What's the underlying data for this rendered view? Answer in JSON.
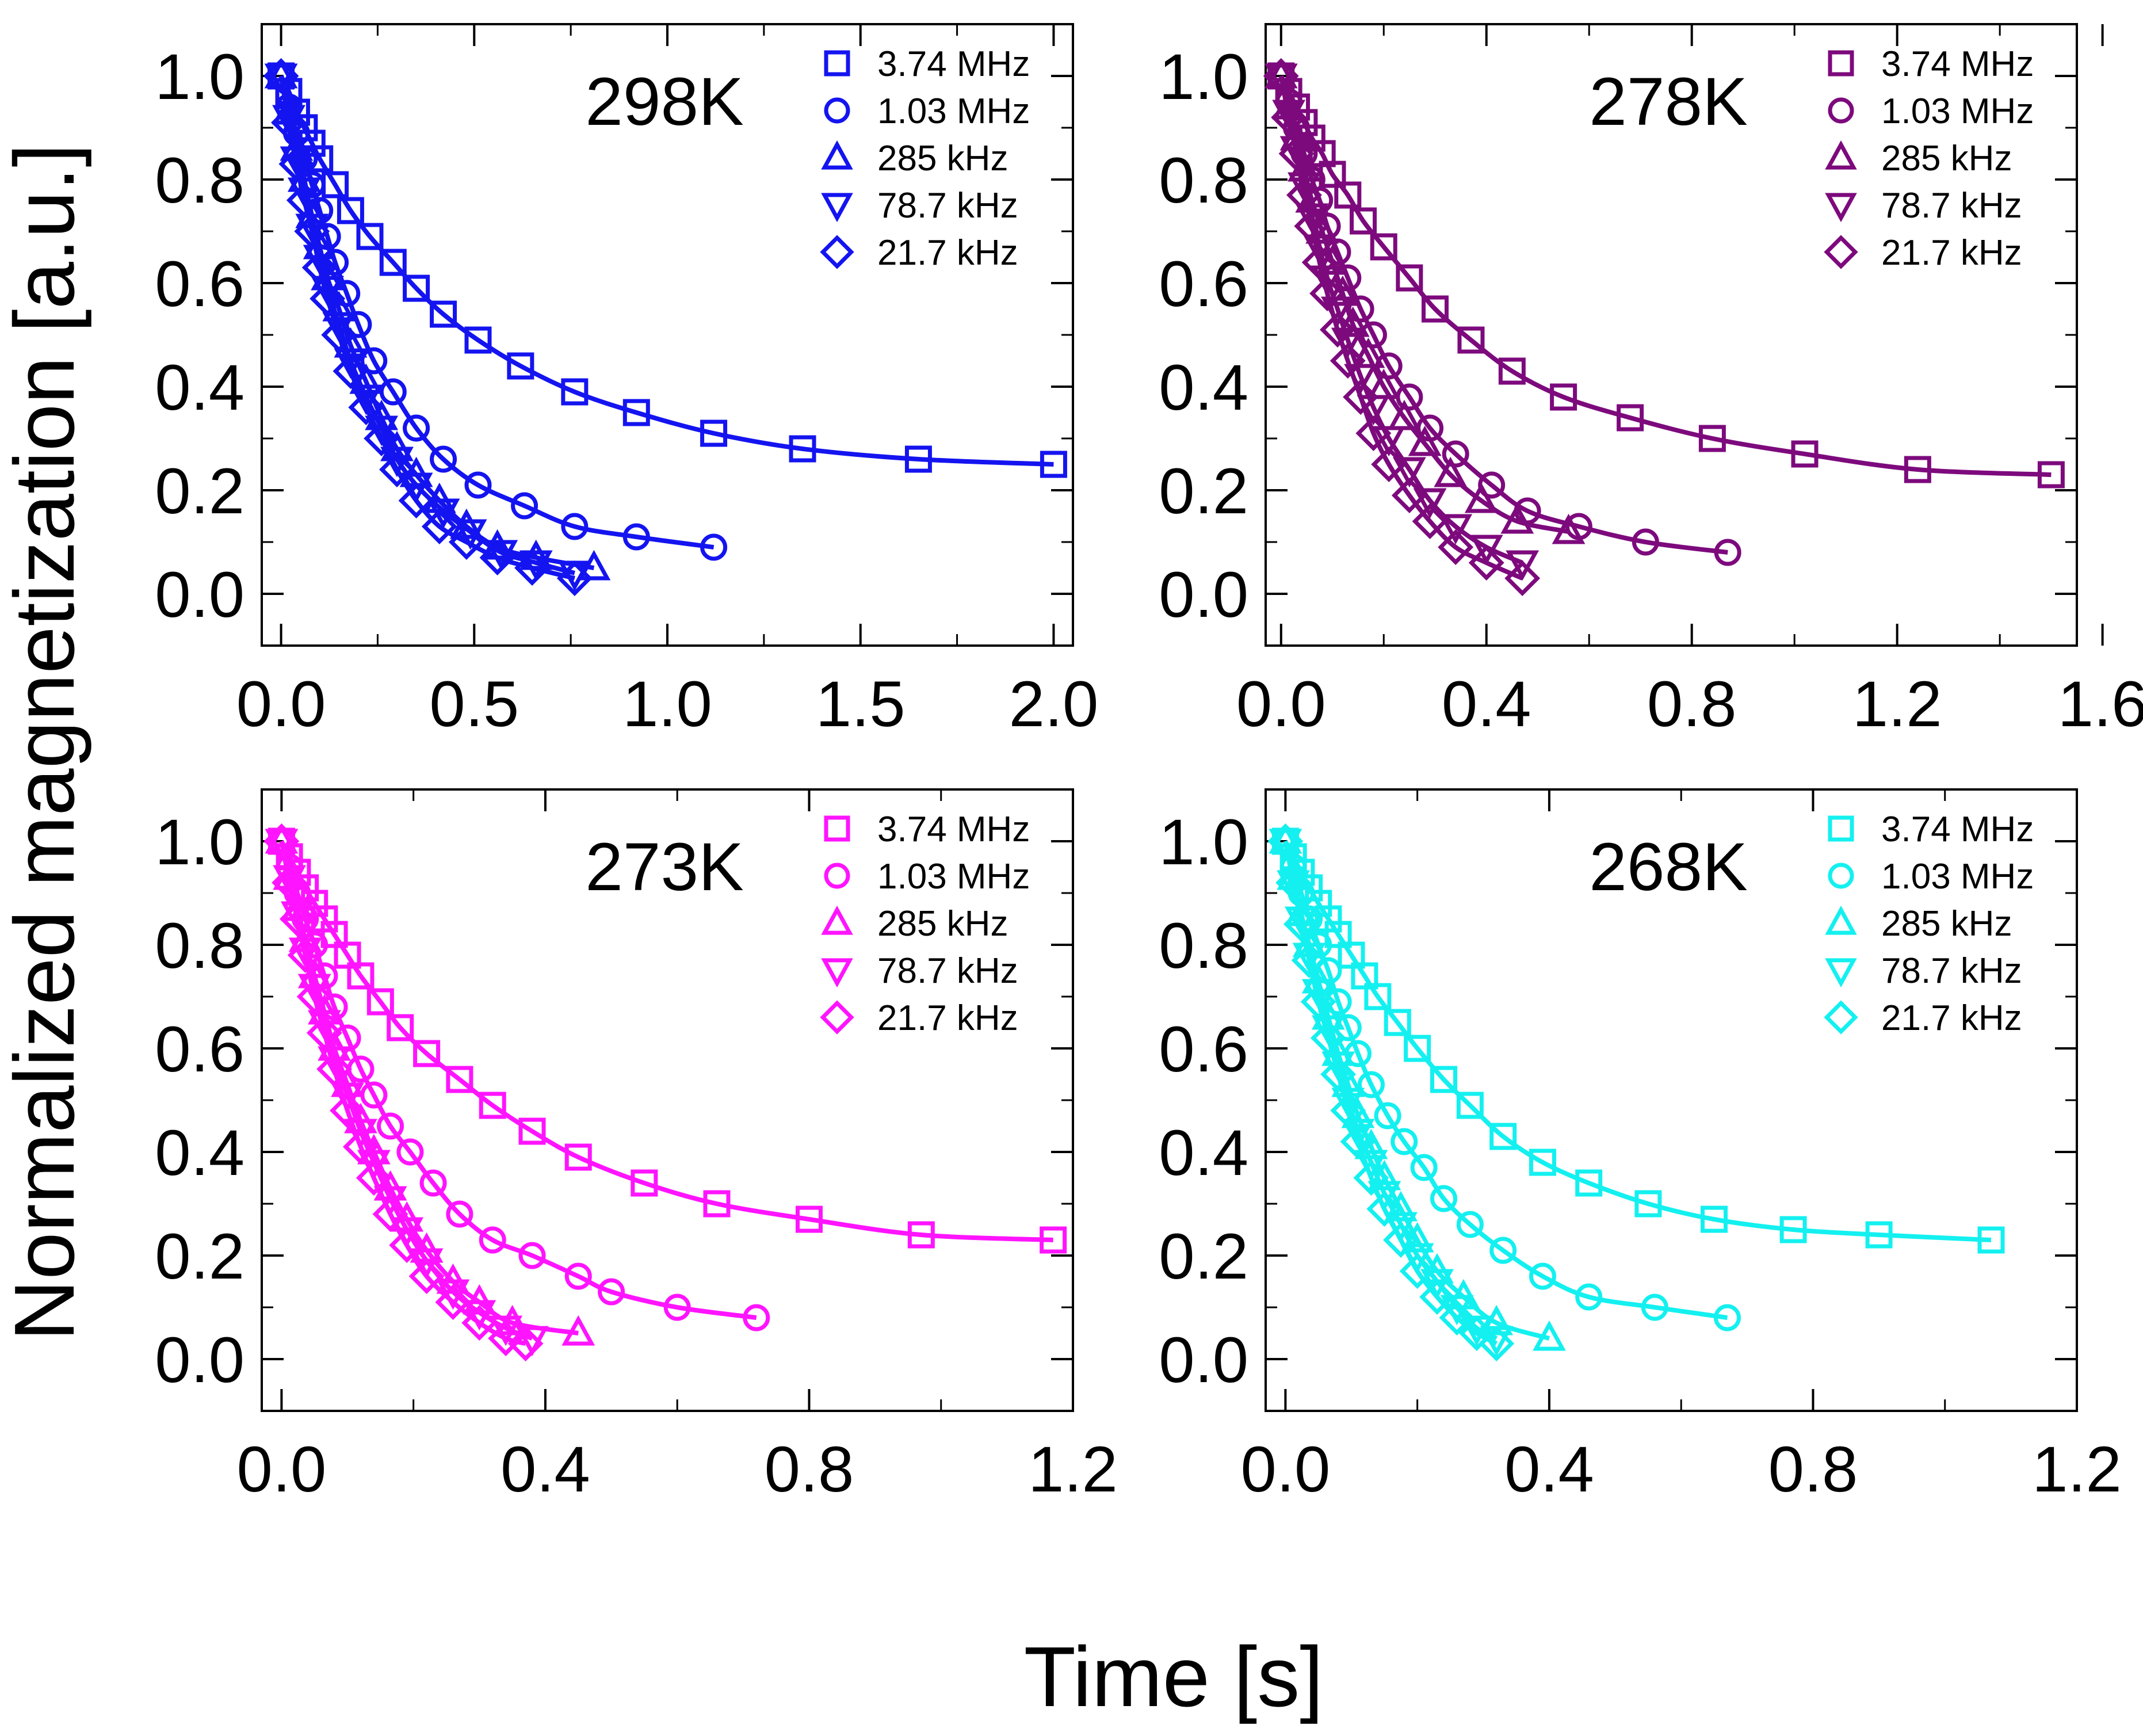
{
  "figure": {
    "ylabel": "Normalized magnetization [a.u.]",
    "xlabel": "Time [s]"
  },
  "chart_data": [
    {
      "type": "scatter",
      "title": "298K",
      "color": "#1414f0",
      "xlim": [
        -0.05,
        2.05
      ],
      "ylim": [
        -0.1,
        1.1
      ],
      "xticks": [
        "0.0",
        "0.5",
        "1.0",
        "1.5",
        "2.0"
      ],
      "xtick_values": [
        0,
        0.5,
        1.0,
        1.5,
        2.0
      ],
      "yticks": [
        "0.0",
        "0.2",
        "0.4",
        "0.6",
        "0.8",
        "1.0"
      ],
      "ytick_values": [
        0,
        0.2,
        0.4,
        0.6,
        0.8,
        1.0
      ],
      "legend_position": "top-right",
      "series": [
        {
          "name": "3.74 MHz",
          "marker": "square",
          "x": [
            0,
            0.02,
            0.04,
            0.06,
            0.08,
            0.1,
            0.14,
            0.18,
            0.23,
            0.29,
            0.35,
            0.42,
            0.51,
            0.62,
            0.76,
            0.92,
            1.12,
            1.35,
            1.65,
            2.0
          ],
          "y": [
            1.0,
            0.97,
            0.93,
            0.9,
            0.87,
            0.84,
            0.79,
            0.74,
            0.69,
            0.64,
            0.59,
            0.54,
            0.49,
            0.44,
            0.39,
            0.35,
            0.31,
            0.28,
            0.26,
            0.25
          ]
        },
        {
          "name": "1.03 MHz",
          "marker": "circle",
          "x": [
            0,
            0.02,
            0.04,
            0.06,
            0.08,
            0.1,
            0.12,
            0.14,
            0.17,
            0.2,
            0.24,
            0.29,
            0.35,
            0.42,
            0.51,
            0.63,
            0.76,
            0.92,
            1.12
          ],
          "y": [
            1.0,
            0.94,
            0.89,
            0.84,
            0.79,
            0.74,
            0.69,
            0.64,
            0.58,
            0.52,
            0.45,
            0.39,
            0.32,
            0.26,
            0.21,
            0.17,
            0.13,
            0.11,
            0.09
          ]
        },
        {
          "name": "285 kHz",
          "marker": "triangle-up",
          "x": [
            0,
            0.02,
            0.04,
            0.06,
            0.08,
            0.1,
            0.12,
            0.15,
            0.18,
            0.22,
            0.26,
            0.3,
            0.35,
            0.41,
            0.48,
            0.56,
            0.66,
            0.81
          ],
          "y": [
            1.0,
            0.93,
            0.86,
            0.8,
            0.73,
            0.67,
            0.61,
            0.55,
            0.48,
            0.41,
            0.34,
            0.28,
            0.23,
            0.18,
            0.13,
            0.09,
            0.07,
            0.05
          ]
        },
        {
          "name": "78.7 kHz",
          "marker": "triangle-down",
          "x": [
            0,
            0.02,
            0.04,
            0.06,
            0.08,
            0.1,
            0.12,
            0.15,
            0.18,
            0.22,
            0.26,
            0.3,
            0.35,
            0.42,
            0.49,
            0.57,
            0.66,
            0.76
          ],
          "y": [
            1.0,
            0.92,
            0.84,
            0.78,
            0.71,
            0.65,
            0.59,
            0.52,
            0.45,
            0.38,
            0.32,
            0.26,
            0.21,
            0.16,
            0.12,
            0.08,
            0.06,
            0.04
          ]
        },
        {
          "name": "21.7 kHz",
          "marker": "diamond",
          "x": [
            0,
            0.02,
            0.04,
            0.06,
            0.08,
            0.1,
            0.12,
            0.15,
            0.18,
            0.22,
            0.26,
            0.3,
            0.35,
            0.41,
            0.48,
            0.56,
            0.65,
            0.76
          ],
          "y": [
            1.0,
            0.91,
            0.83,
            0.76,
            0.7,
            0.63,
            0.57,
            0.5,
            0.43,
            0.36,
            0.3,
            0.24,
            0.18,
            0.13,
            0.1,
            0.07,
            0.05,
            0.03
          ]
        }
      ]
    },
    {
      "type": "scatter",
      "title": "278K",
      "color": "#7d0a7d",
      "xlim": [
        -0.03,
        1.55
      ],
      "ylim": [
        -0.1,
        1.1
      ],
      "xticks": [
        "0.0",
        "0.4",
        "0.8",
        "1.2",
        "1.6"
      ],
      "xtick_values": [
        0,
        0.4,
        0.8,
        1.2,
        1.6
      ],
      "yticks": [
        "0.0",
        "0.2",
        "0.4",
        "0.6",
        "0.8",
        "1.0"
      ],
      "ytick_values": [
        0,
        0.2,
        0.4,
        0.6,
        0.8,
        1.0
      ],
      "legend_position": "top-right",
      "series": [
        {
          "name": "3.74 MHz",
          "marker": "square",
          "x": [
            0,
            0.015,
            0.03,
            0.045,
            0.06,
            0.08,
            0.1,
            0.13,
            0.16,
            0.2,
            0.25,
            0.3,
            0.37,
            0.45,
            0.55,
            0.68,
            0.84,
            1.02,
            1.24,
            1.5
          ],
          "y": [
            1.0,
            0.97,
            0.94,
            0.91,
            0.88,
            0.85,
            0.81,
            0.77,
            0.72,
            0.67,
            0.61,
            0.55,
            0.49,
            0.43,
            0.38,
            0.34,
            0.3,
            0.27,
            0.24,
            0.23
          ]
        },
        {
          "name": "1.03 MHz",
          "marker": "circle",
          "x": [
            0,
            0.015,
            0.03,
            0.045,
            0.06,
            0.075,
            0.09,
            0.11,
            0.13,
            0.155,
            0.18,
            0.21,
            0.25,
            0.29,
            0.34,
            0.41,
            0.48,
            0.58,
            0.71,
            0.87
          ],
          "y": [
            1.0,
            0.95,
            0.9,
            0.85,
            0.8,
            0.76,
            0.71,
            0.66,
            0.61,
            0.55,
            0.5,
            0.44,
            0.38,
            0.32,
            0.27,
            0.21,
            0.16,
            0.13,
            0.1,
            0.08
          ]
        },
        {
          "name": "285 kHz",
          "marker": "triangle-up",
          "x": [
            0,
            0.015,
            0.03,
            0.045,
            0.06,
            0.08,
            0.1,
            0.12,
            0.14,
            0.17,
            0.2,
            0.24,
            0.28,
            0.33,
            0.39,
            0.46,
            0.56
          ],
          "y": [
            1.0,
            0.94,
            0.88,
            0.82,
            0.76,
            0.7,
            0.64,
            0.58,
            0.52,
            0.46,
            0.4,
            0.34,
            0.29,
            0.23,
            0.18,
            0.14,
            0.12
          ]
        },
        {
          "name": "78.7 kHz",
          "marker": "triangle-down",
          "x": [
            0,
            0.015,
            0.03,
            0.045,
            0.06,
            0.075,
            0.09,
            0.11,
            0.13,
            0.155,
            0.18,
            0.21,
            0.25,
            0.29,
            0.34,
            0.4,
            0.47
          ],
          "y": [
            1.0,
            0.93,
            0.86,
            0.79,
            0.73,
            0.67,
            0.61,
            0.55,
            0.49,
            0.42,
            0.36,
            0.3,
            0.24,
            0.18,
            0.13,
            0.09,
            0.06
          ]
        },
        {
          "name": "21.7 kHz",
          "marker": "diamond",
          "x": [
            0,
            0.015,
            0.03,
            0.045,
            0.06,
            0.075,
            0.09,
            0.11,
            0.13,
            0.155,
            0.18,
            0.21,
            0.25,
            0.29,
            0.34,
            0.4,
            0.47
          ],
          "y": [
            1.0,
            0.92,
            0.85,
            0.77,
            0.71,
            0.64,
            0.58,
            0.51,
            0.45,
            0.38,
            0.31,
            0.25,
            0.19,
            0.14,
            0.09,
            0.06,
            0.03
          ]
        }
      ]
    },
    {
      "type": "scatter",
      "title": "273K",
      "color": "#ff14ff",
      "xlim": [
        -0.03,
        1.2
      ],
      "ylim": [
        -0.1,
        1.1
      ],
      "xticks": [
        "0.0",
        "0.4",
        "0.8",
        "1.2"
      ],
      "xtick_values": [
        0,
        0.4,
        0.8,
        1.2
      ],
      "yticks": [
        "0.0",
        "0.2",
        "0.4",
        "0.6",
        "0.8",
        "1.0"
      ],
      "ytick_values": [
        0,
        0.2,
        0.4,
        0.6,
        0.8,
        1.0
      ],
      "legend_position": "top-right",
      "series": [
        {
          "name": "3.74 MHz",
          "marker": "square",
          "x": [
            0,
            0.012,
            0.024,
            0.036,
            0.05,
            0.065,
            0.08,
            0.1,
            0.12,
            0.15,
            0.18,
            0.22,
            0.27,
            0.32,
            0.38,
            0.45,
            0.55,
            0.66,
            0.8,
            0.97,
            1.17
          ],
          "y": [
            1.0,
            0.97,
            0.94,
            0.91,
            0.88,
            0.85,
            0.82,
            0.78,
            0.74,
            0.69,
            0.64,
            0.59,
            0.54,
            0.49,
            0.44,
            0.39,
            0.34,
            0.3,
            0.27,
            0.24,
            0.23
          ]
        },
        {
          "name": "1.03 MHz",
          "marker": "circle",
          "x": [
            0,
            0.012,
            0.024,
            0.036,
            0.05,
            0.065,
            0.08,
            0.1,
            0.12,
            0.14,
            0.165,
            0.195,
            0.23,
            0.27,
            0.32,
            0.38,
            0.45,
            0.5,
            0.6,
            0.72
          ],
          "y": [
            1.0,
            0.95,
            0.9,
            0.85,
            0.8,
            0.74,
            0.68,
            0.62,
            0.56,
            0.51,
            0.45,
            0.4,
            0.34,
            0.28,
            0.23,
            0.2,
            0.16,
            0.13,
            0.1,
            0.08
          ]
        },
        {
          "name": "285 kHz",
          "marker": "triangle-up",
          "x": [
            0,
            0.012,
            0.024,
            0.036,
            0.05,
            0.065,
            0.08,
            0.1,
            0.12,
            0.14,
            0.165,
            0.19,
            0.22,
            0.26,
            0.3,
            0.35,
            0.45
          ],
          "y": [
            1.0,
            0.93,
            0.87,
            0.81,
            0.74,
            0.67,
            0.6,
            0.53,
            0.46,
            0.4,
            0.33,
            0.27,
            0.21,
            0.15,
            0.11,
            0.07,
            0.05
          ]
        },
        {
          "name": "78.7 kHz",
          "marker": "triangle-down",
          "x": [
            0,
            0.012,
            0.024,
            0.036,
            0.05,
            0.065,
            0.08,
            0.1,
            0.12,
            0.14,
            0.165,
            0.19,
            0.22,
            0.26,
            0.3,
            0.34,
            0.38
          ],
          "y": [
            1.0,
            0.93,
            0.86,
            0.79,
            0.72,
            0.65,
            0.58,
            0.51,
            0.44,
            0.38,
            0.31,
            0.25,
            0.19,
            0.13,
            0.09,
            0.06,
            0.04
          ]
        },
        {
          "name": "21.7 kHz",
          "marker": "diamond",
          "x": [
            0,
            0.012,
            0.024,
            0.036,
            0.05,
            0.065,
            0.08,
            0.1,
            0.12,
            0.14,
            0.165,
            0.19,
            0.22,
            0.26,
            0.3,
            0.34,
            0.37
          ],
          "y": [
            1.0,
            0.92,
            0.85,
            0.78,
            0.7,
            0.63,
            0.56,
            0.48,
            0.41,
            0.35,
            0.28,
            0.22,
            0.16,
            0.11,
            0.07,
            0.04,
            0.03
          ]
        }
      ]
    },
    {
      "type": "scatter",
      "title": "268K",
      "color": "#14f0f0",
      "xlim": [
        -0.03,
        1.2
      ],
      "ylim": [
        -0.1,
        1.1
      ],
      "xticks": [
        "0.0",
        "0.4",
        "0.8",
        "1.2"
      ],
      "xtick_values": [
        0,
        0.4,
        0.8,
        1.2
      ],
      "yticks": [
        "0.0",
        "0.2",
        "0.4",
        "0.6",
        "0.8",
        "1.0"
      ],
      "ytick_values": [
        0,
        0.2,
        0.4,
        0.6,
        0.8,
        1.0
      ],
      "legend_position": "top-right",
      "series": [
        {
          "name": "3.74 MHz",
          "marker": "square",
          "x": [
            0,
            0.012,
            0.024,
            0.036,
            0.05,
            0.065,
            0.08,
            0.1,
            0.12,
            0.14,
            0.17,
            0.2,
            0.24,
            0.28,
            0.33,
            0.39,
            0.46,
            0.55,
            0.65,
            0.77,
            0.9,
            1.07
          ],
          "y": [
            1.0,
            0.97,
            0.94,
            0.91,
            0.88,
            0.85,
            0.82,
            0.78,
            0.74,
            0.7,
            0.65,
            0.6,
            0.54,
            0.49,
            0.43,
            0.38,
            0.34,
            0.3,
            0.27,
            0.25,
            0.24,
            0.23
          ]
        },
        {
          "name": "1.03 MHz",
          "marker": "circle",
          "x": [
            0,
            0.012,
            0.024,
            0.036,
            0.05,
            0.065,
            0.08,
            0.095,
            0.11,
            0.13,
            0.155,
            0.18,
            0.21,
            0.24,
            0.28,
            0.33,
            0.39,
            0.46,
            0.56,
            0.67
          ],
          "y": [
            1.0,
            0.95,
            0.9,
            0.85,
            0.8,
            0.75,
            0.69,
            0.64,
            0.59,
            0.53,
            0.47,
            0.42,
            0.37,
            0.31,
            0.26,
            0.21,
            0.16,
            0.12,
            0.1,
            0.08
          ]
        },
        {
          "name": "285 kHz",
          "marker": "triangle-up",
          "x": [
            0,
            0.012,
            0.024,
            0.036,
            0.05,
            0.065,
            0.08,
            0.095,
            0.11,
            0.13,
            0.15,
            0.175,
            0.2,
            0.23,
            0.27,
            0.32,
            0.4
          ],
          "y": [
            1.0,
            0.93,
            0.86,
            0.8,
            0.73,
            0.66,
            0.59,
            0.53,
            0.47,
            0.41,
            0.35,
            0.29,
            0.23,
            0.17,
            0.12,
            0.07,
            0.04
          ]
        },
        {
          "name": "78.7 kHz",
          "marker": "triangle-down",
          "x": [
            0,
            0.012,
            0.024,
            0.036,
            0.05,
            0.065,
            0.08,
            0.095,
            0.11,
            0.13,
            0.15,
            0.175,
            0.2,
            0.23,
            0.26,
            0.29,
            0.32
          ],
          "y": [
            1.0,
            0.92,
            0.85,
            0.78,
            0.71,
            0.64,
            0.57,
            0.5,
            0.44,
            0.38,
            0.32,
            0.26,
            0.2,
            0.15,
            0.1,
            0.06,
            0.04
          ]
        },
        {
          "name": "21.7 kHz",
          "marker": "diamond",
          "x": [
            0,
            0.012,
            0.024,
            0.036,
            0.05,
            0.065,
            0.08,
            0.095,
            0.11,
            0.13,
            0.15,
            0.175,
            0.2,
            0.23,
            0.26,
            0.29,
            0.32
          ],
          "y": [
            1.0,
            0.92,
            0.84,
            0.77,
            0.69,
            0.62,
            0.55,
            0.48,
            0.42,
            0.35,
            0.29,
            0.23,
            0.17,
            0.12,
            0.08,
            0.05,
            0.03
          ]
        }
      ]
    }
  ]
}
